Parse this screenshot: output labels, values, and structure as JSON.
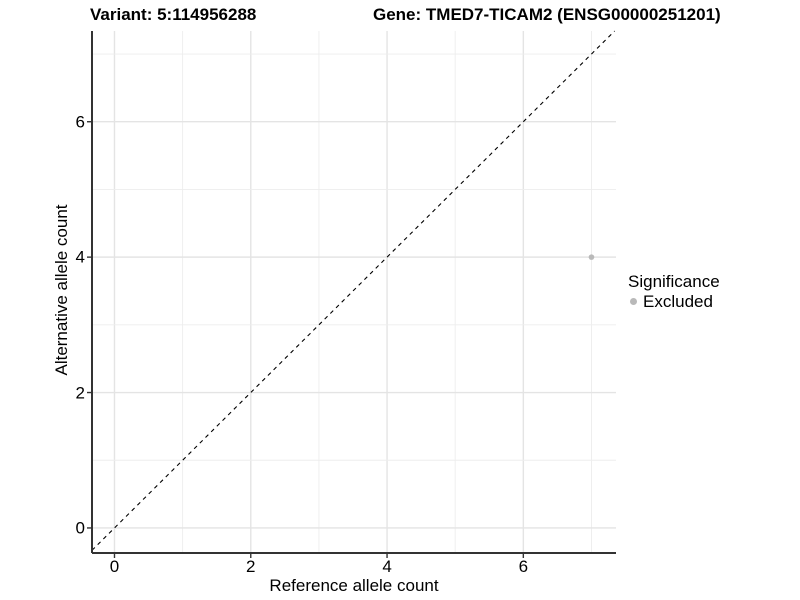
{
  "header": {
    "variant_title": "Variant: 5:114956288",
    "gene_title": "Gene: TMED7-TICAM2 (ENSG00000251201)"
  },
  "chart_data": {
    "type": "scatter",
    "title": "Variant: 5:114956288  /  Gene: TMED7-TICAM2 (ENSG00000251201)",
    "xlabel": "Reference allele count",
    "ylabel": "Alternative allele count",
    "xlim": [
      -0.33,
      7.36
    ],
    "ylim": [
      -0.37,
      7.34
    ],
    "x_ticks": [
      0,
      2,
      4,
      6
    ],
    "y_ticks": [
      0,
      2,
      4,
      6
    ],
    "grid": "major and minor gridlines every 1 unit",
    "points": [
      {
        "x": 7,
        "y": 4,
        "significance": "Excluded"
      }
    ],
    "identity_line": {
      "type": "y=x",
      "style": "dashed",
      "color": "#000000"
    },
    "legend": {
      "title": "Significance",
      "position": "right",
      "items": [
        {
          "label": "Excluded",
          "color": "#b9b9b9"
        }
      ]
    }
  },
  "colors": {
    "point": "#b9b9b9",
    "grid_major": "#e4e4e4",
    "grid_minor": "#ededed",
    "axis_line": "#333333",
    "text": "#000000",
    "background": "#ffffff"
  }
}
